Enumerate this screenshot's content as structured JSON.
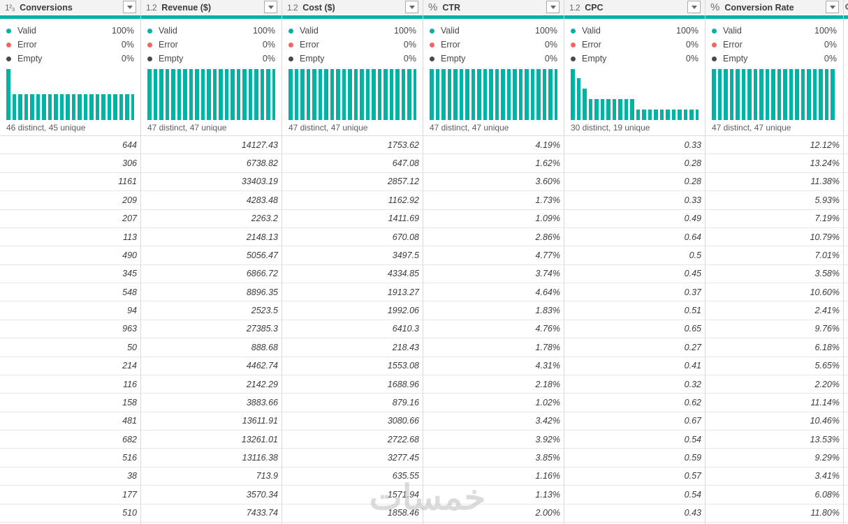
{
  "colors": {
    "accent_teal": "#00B2A4",
    "error_red": "#F4655F",
    "empty_dark": "#494949",
    "header_bg": "#f3f3f3"
  },
  "watermark": "خمسات",
  "columns": [
    {
      "type_icon": "1²₃",
      "icon_kind": "whole-number",
      "name": "Conversions",
      "quality": [
        {
          "label": "Valid",
          "value": "100%"
        },
        {
          "label": "Error",
          "value": "0%"
        },
        {
          "label": "Empty",
          "value": "0%"
        }
      ],
      "distinct": "46 distinct, 45 unique",
      "histogram": [
        1,
        0.5,
        0.5,
        0.5,
        0.5,
        0.5,
        0.5,
        0.5,
        0.5,
        0.5,
        0.5,
        0.5,
        0.5,
        0.5,
        0.5,
        0.5,
        0.5,
        0.5,
        0.5,
        0.5,
        0.5,
        0.5
      ],
      "values": [
        "644",
        "306",
        "1161",
        "209",
        "207",
        "113",
        "490",
        "345",
        "548",
        "94",
        "963",
        "50",
        "214",
        "116",
        "158",
        "481",
        "682",
        "516",
        "38",
        "177",
        "510"
      ]
    },
    {
      "type_icon": "1.2",
      "icon_kind": "decimal",
      "name": "Revenue ($)",
      "quality": [
        {
          "label": "Valid",
          "value": "100%"
        },
        {
          "label": "Error",
          "value": "0%"
        },
        {
          "label": "Empty",
          "value": "0%"
        }
      ],
      "distinct": "47 distinct, 47 unique",
      "histogram": [
        1,
        1,
        1,
        1,
        1,
        1,
        1,
        1,
        1,
        1,
        1,
        1,
        1,
        1,
        1,
        1,
        1,
        1,
        1,
        1,
        1,
        1,
        1
      ],
      "values": [
        "14127.43",
        "6738.82",
        "33403.19",
        "4283.48",
        "2263.2",
        "2148.13",
        "5056.47",
        "6866.72",
        "8896.35",
        "2523.5",
        "27385.3",
        "888.68",
        "4462.74",
        "2142.29",
        "3883.66",
        "13611.91",
        "13261.01",
        "13116.38",
        "713.9",
        "3570.34",
        "7433.74"
      ]
    },
    {
      "type_icon": "1.2",
      "icon_kind": "decimal",
      "name": "Cost ($)",
      "quality": [
        {
          "label": "Valid",
          "value": "100%"
        },
        {
          "label": "Error",
          "value": "0%"
        },
        {
          "label": "Empty",
          "value": "0%"
        }
      ],
      "distinct": "47 distinct, 47 unique",
      "histogram": [
        1,
        1,
        1,
        1,
        1,
        1,
        1,
        1,
        1,
        1,
        1,
        1,
        1,
        1,
        1,
        1,
        1,
        1,
        1,
        1,
        1,
        1,
        1
      ],
      "values": [
        "1753.62",
        "647.08",
        "2857.12",
        "1162.92",
        "1411.69",
        "670.08",
        "3497.5",
        "4334.85",
        "1913.27",
        "1992.06",
        "6410.3",
        "218.43",
        "1553.08",
        "1688.96",
        "879.16",
        "3080.66",
        "2722.68",
        "3277.45",
        "635.55",
        "1571.94",
        "1858.46"
      ]
    },
    {
      "type_icon": "%",
      "icon_kind": "percentage",
      "name": "CTR",
      "quality": [
        {
          "label": "Valid",
          "value": "100%"
        },
        {
          "label": "Error",
          "value": "0%"
        },
        {
          "label": "Empty",
          "value": "0%"
        }
      ],
      "distinct": "47 distinct, 47 unique",
      "histogram": [
        1,
        1,
        1,
        1,
        1,
        1,
        1,
        1,
        1,
        1,
        1,
        1,
        1,
        1,
        1,
        1,
        1,
        1,
        1,
        1,
        1,
        1,
        1
      ],
      "values": [
        "4.19%",
        "1.62%",
        "3.60%",
        "1.73%",
        "1.09%",
        "2.86%",
        "4.77%",
        "3.74%",
        "4.64%",
        "1.83%",
        "4.76%",
        "1.78%",
        "4.31%",
        "2.18%",
        "1.02%",
        "3.42%",
        "3.92%",
        "3.85%",
        "1.16%",
        "1.13%",
        "2.00%"
      ]
    },
    {
      "type_icon": "1.2",
      "icon_kind": "decimal",
      "name": "CPC",
      "quality": [
        {
          "label": "Valid",
          "value": "100%"
        },
        {
          "label": "Error",
          "value": "0%"
        },
        {
          "label": "Empty",
          "value": "0%"
        }
      ],
      "distinct": "30 distinct, 19 unique",
      "histogram": [
        1,
        0.82,
        0.61,
        0.41,
        0.41,
        0.41,
        0.41,
        0.41,
        0.41,
        0.41,
        0.41,
        0.21,
        0.21,
        0.21,
        0.21,
        0.21,
        0.21,
        0.21,
        0.21,
        0.21,
        0.21,
        0.21
      ],
      "values": [
        "0.33",
        "0.28",
        "0.28",
        "0.33",
        "0.49",
        "0.64",
        "0.5",
        "0.45",
        "0.37",
        "0.51",
        "0.65",
        "0.27",
        "0.41",
        "0.32",
        "0.62",
        "0.67",
        "0.54",
        "0.59",
        "0.57",
        "0.54",
        "0.43"
      ]
    },
    {
      "type_icon": "%",
      "icon_kind": "percentage",
      "name": "Conversion Rate",
      "quality": [
        {
          "label": "Valid",
          "value": "100%"
        },
        {
          "label": "Error",
          "value": "0%"
        },
        {
          "label": "Empty",
          "value": "0%"
        }
      ],
      "distinct": "47 distinct, 47 unique",
      "histogram": [
        1,
        1,
        1,
        1,
        1,
        1,
        1,
        1,
        1,
        1,
        1,
        1,
        1,
        1,
        1,
        1,
        1,
        1,
        1,
        1,
        1,
        1,
        1
      ],
      "values": [
        "12.12%",
        "13.24%",
        "11.38%",
        "5.93%",
        "7.19%",
        "10.79%",
        "7.01%",
        "3.58%",
        "10.60%",
        "2.41%",
        "9.76%",
        "6.18%",
        "5.65%",
        "2.20%",
        "11.14%",
        "10.46%",
        "13.53%",
        "9.29%",
        "3.41%",
        "6.08%",
        "11.80%"
      ]
    }
  ]
}
